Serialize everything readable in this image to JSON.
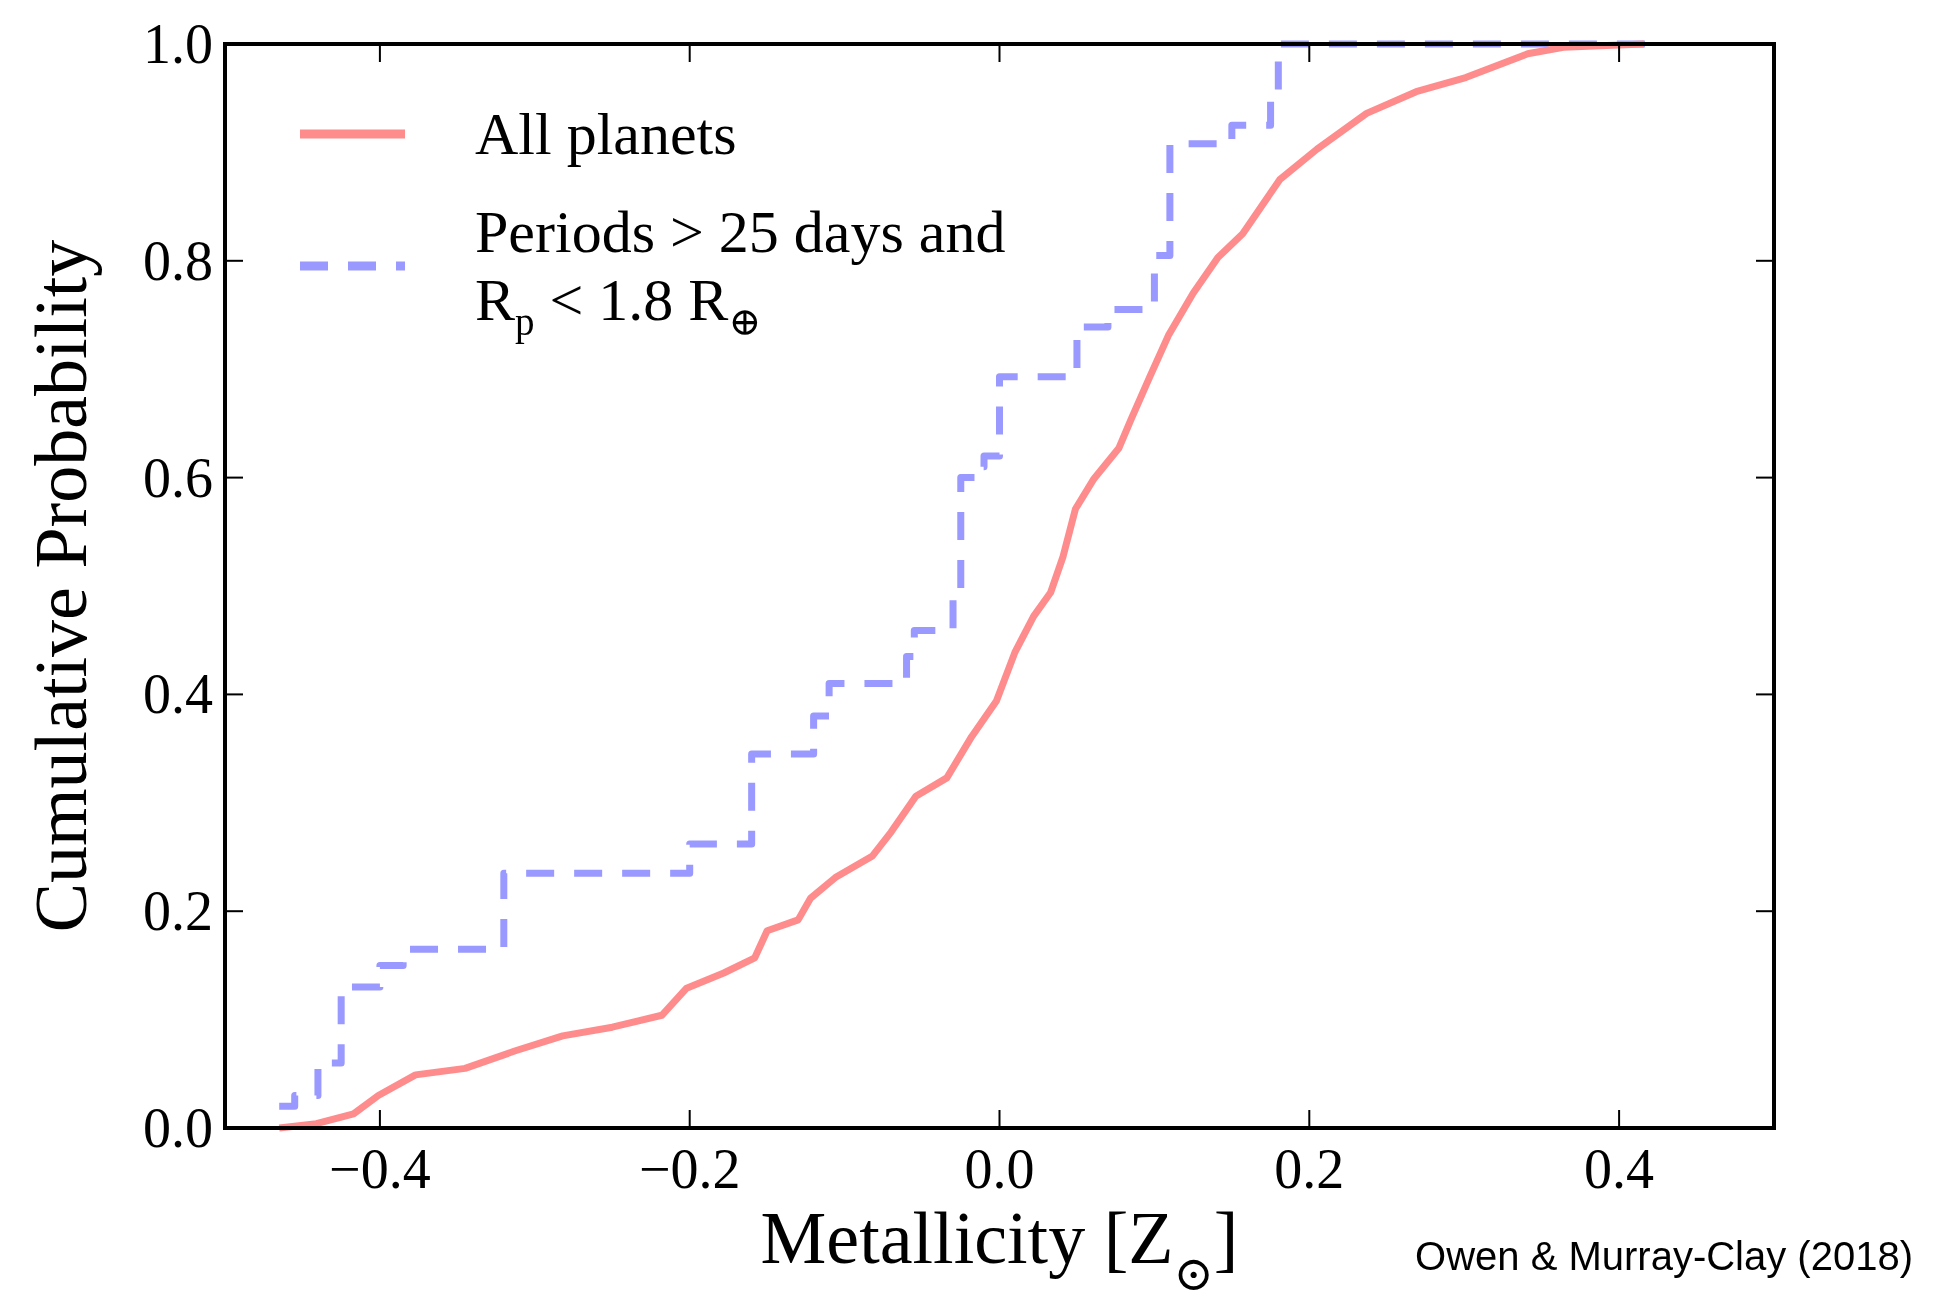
{
  "chart_data": {
    "type": "line",
    "xlabel": "Metallicity [Z$_{⊙}$]",
    "ylabel": "Cumulative Probability",
    "xlim": [
      -0.5,
      0.5
    ],
    "xticks": [
      {
        "value": -0.4,
        "label": "−0.4"
      },
      {
        "value": -0.2,
        "label": "−0.2"
      },
      {
        "value": 0,
        "label": "0.0"
      },
      {
        "value": 0.2,
        "label": "0.2"
      },
      {
        "value": 0.4,
        "label": "0.4"
      }
    ],
    "ylim": [
      0,
      1.0
    ],
    "yticks": [
      {
        "value": 0,
        "label": "0.0"
      },
      {
        "value": 0.2,
        "label": "0.2"
      },
      {
        "value": 0.4,
        "label": "0.4"
      },
      {
        "value": 0.6,
        "label": "0.6"
      },
      {
        "value": 0.8,
        "label": "0.8"
      },
      {
        "value": 1,
        "label": "1.0"
      }
    ],
    "grid": false,
    "legend": "top left",
    "annotations": [
      "Owen & Murray-Clay (2018)"
    ],
    "series": [
      {
        "name": "All planets",
        "color": "#ff8c8c",
        "line_style": "solid",
        "x": [
          -0.465,
          -0.441,
          -0.417,
          -0.401,
          -0.377,
          -0.345,
          -0.313,
          -0.282,
          -0.25,
          -0.218,
          -0.202,
          -0.178,
          -0.158,
          -0.15,
          -0.13,
          -0.122,
          -0.106,
          -0.082,
          -0.07,
          -0.054,
          -0.034,
          -0.018,
          -0.002,
          0.01,
          0.022,
          0.033,
          0.041,
          0.049,
          0.061,
          0.077,
          0.085,
          0.097,
          0.109,
          0.125,
          0.141,
          0.157,
          0.181,
          0.205,
          0.237,
          0.269,
          0.301,
          0.341,
          0.364,
          0.416
        ],
        "values": [
          0,
          0.004,
          0.013,
          0.03,
          0.049,
          0.055,
          0.071,
          0.085,
          0.093,
          0.104,
          0.129,
          0.143,
          0.157,
          0.182,
          0.192,
          0.212,
          0.231,
          0.251,
          0.273,
          0.306,
          0.323,
          0.361,
          0.394,
          0.439,
          0.472,
          0.494,
          0.527,
          0.571,
          0.599,
          0.627,
          0.654,
          0.693,
          0.731,
          0.77,
          0.803,
          0.825,
          0.875,
          0.903,
          0.936,
          0.956,
          0.969,
          0.991,
          0.997,
          1.0
        ]
      },
      {
        "name": "Periods > 25 days and R$_{p}$ < 1.8 R$_{⊕}$",
        "type": "step",
        "color": "#9999ff",
        "line_style": "dashed",
        "x": [
          -0.465,
          -0.455,
          -0.44,
          -0.425,
          -0.4,
          -0.385,
          -0.32,
          -0.2,
          -0.16,
          -0.12,
          -0.11,
          -0.06,
          -0.055,
          -0.03,
          -0.025,
          -0.015,
          -0.01,
          0.0,
          0.05,
          0.07,
          0.1,
          0.11,
          0.15,
          0.175,
          0.18,
          0.42
        ],
        "values": [
          0.02,
          0.03,
          0.06,
          0.13,
          0.15,
          0.165,
          0.235,
          0.262,
          0.345,
          0.38,
          0.41,
          0.435,
          0.459,
          0.49,
          0.6,
          0.61,
          0.62,
          0.693,
          0.739,
          0.755,
          0.805,
          0.908,
          0.925,
          0.956,
          1.0,
          1.0
        ]
      }
    ]
  }
}
